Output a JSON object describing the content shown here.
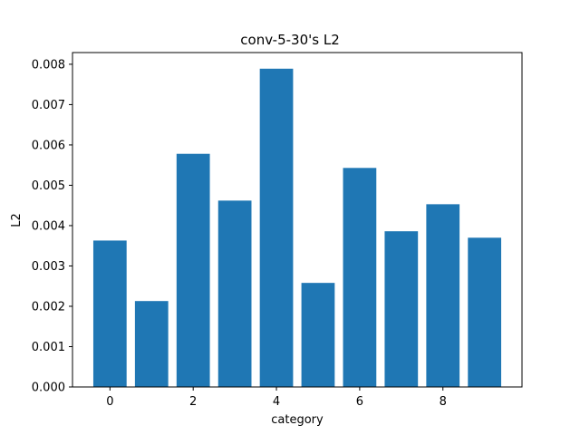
{
  "chart_data": {
    "type": "bar",
    "title": "conv-5-30's L2",
    "xlabel": "category",
    "ylabel": "L2",
    "categories": [
      0,
      1,
      2,
      3,
      4,
      5,
      6,
      7,
      8,
      9
    ],
    "values": [
      0.00363,
      0.00213,
      0.00578,
      0.00462,
      0.00789,
      0.00258,
      0.00543,
      0.00386,
      0.00453,
      0.0037
    ],
    "xlim": [
      -0.9,
      9.9
    ],
    "ylim": [
      0,
      0.00829
    ],
    "xticks": [
      0,
      2,
      4,
      6,
      8
    ],
    "xtick_labels": [
      "0",
      "2",
      "4",
      "6",
      "8"
    ],
    "yticks": [
      0,
      0.001,
      0.002,
      0.003,
      0.004,
      0.005,
      0.006,
      0.007,
      0.008
    ],
    "ytick_labels": [
      "0.000",
      "0.001",
      "0.002",
      "0.003",
      "0.004",
      "0.005",
      "0.006",
      "0.007",
      "0.008"
    ],
    "bar_color": "#1f77b4",
    "grid": false,
    "legend": false
  }
}
